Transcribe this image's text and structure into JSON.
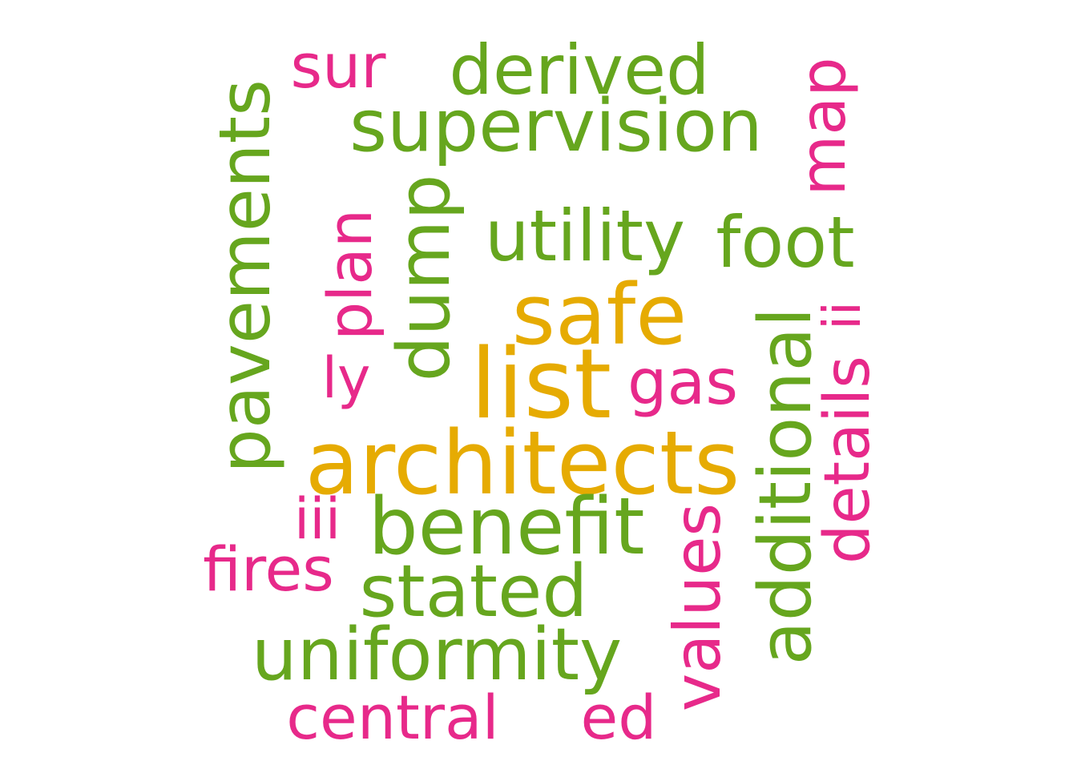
{
  "colors": {
    "green": "#66a61e",
    "pink": "#e7298a",
    "gold": "#e6ab02"
  },
  "words": {
    "sur": "sur",
    "derived": "derived",
    "map": "map",
    "pavements": "pavements",
    "supervision": "supervision",
    "plan": "plan",
    "dump": "dump",
    "utility": "utility",
    "foot": "foot",
    "safe": "safe",
    "ii": "ii",
    "ly": "ly",
    "list": "list",
    "gas": "gas",
    "additional": "additional",
    "details": "details",
    "architects": "architects",
    "iii": "iii",
    "benefit": "benefit",
    "values": "values",
    "fires": "fires",
    "stated": "stated",
    "uniformity": "uniformity",
    "central": "central",
    "ed": "ed"
  }
}
